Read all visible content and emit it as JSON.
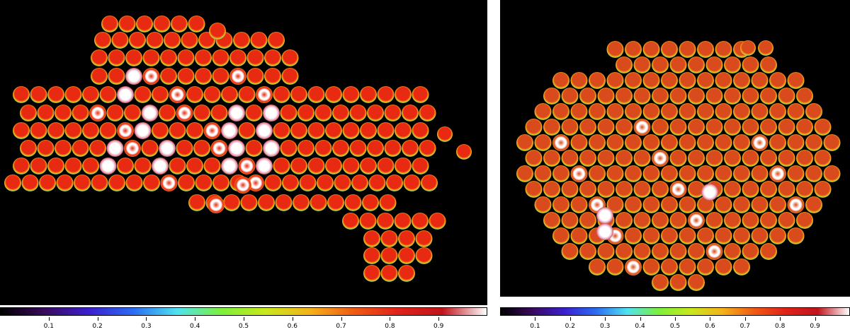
{
  "colorbar": {
    "ticks": [
      "0.1",
      "0.2",
      "0.3",
      "0.4",
      "0.5",
      "0.6",
      "0.7",
      "0.8",
      "0.9"
    ],
    "tick_values": [
      0.1,
      0.2,
      0.3,
      0.4,
      0.5,
      0.6,
      0.7,
      0.8,
      0.9
    ],
    "range": [
      0.0,
      1.0
    ],
    "stops": [
      "#000000",
      "#3a0a5e",
      "#3b1fcf",
      "#2b6cf2",
      "#4fe3ef",
      "#7df03a",
      "#c8e81c",
      "#f4b21a",
      "#f05a14",
      "#e1221a",
      "#c0141c",
      "#ffffff"
    ]
  },
  "panels": [
    {
      "name": "left-mosaic",
      "fill_color": "#e82a12",
      "hot_color": "#ffffff"
    },
    {
      "name": "right-mosaic",
      "fill_color": "#d94a1c",
      "hot_color": "#ffffff"
    }
  ]
}
